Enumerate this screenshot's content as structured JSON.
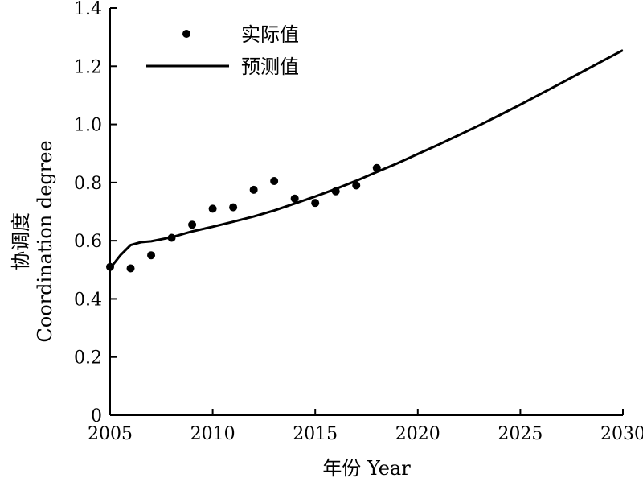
{
  "chart_data": {
    "type": "line",
    "xlabel": "年份 Year",
    "ylabel_cn": "协调度",
    "ylabel_en": "Coordination degree",
    "xlim": [
      2005,
      2030
    ],
    "ylim": [
      0,
      1.4
    ],
    "x_ticks": [
      2005,
      2010,
      2015,
      2020,
      2025,
      2030
    ],
    "x_tick_labels": [
      "2005",
      "2010",
      "2015",
      "2020",
      "2025",
      "2030"
    ],
    "y_ticks": [
      0,
      0.2,
      0.4,
      0.6,
      0.8,
      1.0,
      1.2,
      1.4
    ],
    "y_tick_labels": [
      "0",
      "0.2",
      "0.4",
      "0.6",
      "0.8",
      "1.0",
      "1.2",
      "1.4"
    ],
    "legend_position": "top-left",
    "series": [
      {
        "name": "实际值",
        "style": "scatter",
        "color": "#000000",
        "x": [
          2005,
          2006,
          2007,
          2008,
          2009,
          2010,
          2011,
          2012,
          2013,
          2014,
          2015,
          2016,
          2017,
          2018
        ],
        "y": [
          0.51,
          0.505,
          0.55,
          0.61,
          0.655,
          0.71,
          0.715,
          0.775,
          0.805,
          0.745,
          0.73,
          0.77,
          0.79,
          0.85
        ]
      },
      {
        "name": "预测值",
        "style": "line",
        "color": "#000000",
        "x": [
          2005,
          2005.5,
          2006,
          2006.5,
          2007,
          2008,
          2009,
          2010,
          2011,
          2012,
          2013,
          2014,
          2015,
          2016,
          2017,
          2018,
          2019,
          2020,
          2021,
          2022,
          2023,
          2024,
          2025,
          2026,
          2027,
          2028,
          2029,
          2030
        ],
        "y": [
          0.505,
          0.55,
          0.585,
          0.595,
          0.598,
          0.612,
          0.632,
          0.648,
          0.665,
          0.683,
          0.704,
          0.728,
          0.752,
          0.778,
          0.806,
          0.836,
          0.866,
          0.898,
          0.93,
          0.963,
          0.997,
          1.032,
          1.068,
          1.105,
          1.142,
          1.18,
          1.218,
          1.255
        ]
      }
    ]
  }
}
